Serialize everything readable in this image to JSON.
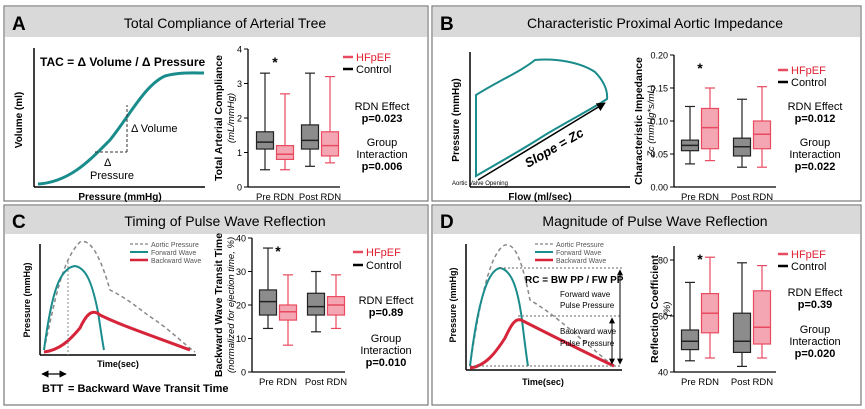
{
  "colors": {
    "header_bg": "#d9d9d9",
    "teal": "#1a8c8c",
    "red": "#d6243a",
    "pink_fill": "#f4a7b3",
    "pink_stroke": "#e84a5f",
    "gray_fill": "#8c8c8c",
    "dash": "#999999"
  },
  "legend": {
    "hfpef": "HFpEF",
    "control": "Control"
  },
  "panels": [
    {
      "letter": "A",
      "title": "Total Compliance of Arterial Tree",
      "schematic": {
        "equation": "TAC = Δ Volume / Δ Pressure",
        "ylabel": "Volume (ml)",
        "xlabel": "Pressure (mmHg)",
        "delta_volume": "Δ Volume",
        "delta_pressure_symbol": "Δ",
        "delta_pressure_word": "Pressure"
      },
      "stats": [
        {
          "label": "RDN Effect",
          "value": "p=0.023"
        },
        {
          "label": "Group",
          "label2": "Interaction",
          "value": "p=0.006"
        }
      ]
    },
    {
      "letter": "B",
      "title": "Characteristic Proximal Aortic Impedance",
      "schematic": {
        "ylabel": "Pressure (mmHg)",
        "xlabel": "Flow (ml/sec)",
        "slope": "Slope = Zc",
        "opening": "Aortic Valve Opening"
      },
      "stats": [
        {
          "label": "RDN Effect",
          "value": "p=0.012"
        },
        {
          "label": "Group",
          "label2": "Interaction",
          "value": "p=0.022"
        }
      ]
    },
    {
      "letter": "C",
      "title": "Timing of Pulse Wave Reflection",
      "schematic": {
        "ylabel": "Pressure (mmHg)",
        "xlabel": "Time(sec)",
        "legend": [
          "Aortic Pressure",
          "Forward Wave",
          "Backward Wave"
        ],
        "btt_abbrev": "BTT",
        "btt_def": "= Backward Wave Transit Time"
      },
      "stats": [
        {
          "label": "RDN Effect",
          "value": "p=0.89"
        },
        {
          "label": "Group",
          "label2": "Interaction",
          "value": "p=0.010"
        }
      ]
    },
    {
      "letter": "D",
      "title": "Magnitude of Pulse Wave Reflection",
      "schematic": {
        "ylabel": "Pressure (mmHg)",
        "xlabel": "Time(sec)",
        "legend": [
          "Aortic Pressure",
          "Forward Wave",
          "Backward Wave"
        ],
        "rc_eq": "RC = BW PP / FW PP",
        "fw_line1": "Forward wave",
        "fw_line2": "Pulse Pressure",
        "bw_line1": "Backward wave",
        "bw_line2": "Pulse Pressure"
      },
      "stats": [
        {
          "label": "RDN Effect",
          "value": "p=0.39"
        },
        {
          "label": "Group",
          "label2": "Interaction",
          "value": "p=0.020"
        }
      ]
    }
  ],
  "chart_data": [
    {
      "type": "box",
      "panel": "A",
      "ylabel": "Total Arterial Compliance",
      "ylabel2": "(mL/mmHg)",
      "ylim": [
        0,
        4
      ],
      "yticks": [
        "0",
        "1",
        "2",
        "3",
        "4"
      ],
      "groups": [
        "Pre RDN",
        "Post RDN"
      ],
      "significance": "*",
      "series": [
        {
          "name": "Control",
          "boxes": [
            {
              "min": 0.5,
              "q1": 1.1,
              "median": 1.3,
              "q3": 1.6,
              "max": 3.3
            },
            {
              "min": 0.6,
              "q1": 1.1,
              "median": 1.35,
              "q3": 1.8,
              "max": 3.3
            }
          ]
        },
        {
          "name": "HFpEF",
          "boxes": [
            {
              "min": 0.5,
              "q1": 0.8,
              "median": 0.95,
              "q3": 1.2,
              "max": 2.7
            },
            {
              "min": 0.7,
              "q1": 0.9,
              "median": 1.2,
              "q3": 1.6,
              "max": 3.2
            }
          ]
        }
      ]
    },
    {
      "type": "box",
      "panel": "B",
      "ylabel": "Characteristic Impedance",
      "ylabel2": "Zc (mmHg*s/mL)",
      "ylim": [
        0,
        0.2
      ],
      "yticks": [
        "0.00",
        "0.05",
        "0.10",
        "0.15",
        "0.20"
      ],
      "groups": [
        "Pre RDN",
        "Post RDN"
      ],
      "significance": "*",
      "series": [
        {
          "name": "Control",
          "boxes": [
            {
              "min": 0.035,
              "q1": 0.055,
              "median": 0.063,
              "q3": 0.071,
              "max": 0.122
            },
            {
              "min": 0.03,
              "q1": 0.047,
              "median": 0.061,
              "q3": 0.074,
              "max": 0.133
            }
          ]
        },
        {
          "name": "HFpEF",
          "boxes": [
            {
              "min": 0.04,
              "q1": 0.058,
              "median": 0.09,
              "q3": 0.119,
              "max": 0.15
            },
            {
              "min": 0.03,
              "q1": 0.058,
              "median": 0.08,
              "q3": 0.1,
              "max": 0.152
            }
          ]
        }
      ]
    },
    {
      "type": "box",
      "panel": "C",
      "ylabel": "Backward Wave Transit Time",
      "ylabel2": "(normalized for ejection time, %)",
      "ylim": [
        0,
        40
      ],
      "yticks": [
        "0",
        "10",
        "20",
        "30",
        "40"
      ],
      "groups": [
        "Pre RDN",
        "Post RDN"
      ],
      "significance": "*",
      "series": [
        {
          "name": "Control",
          "boxes": [
            {
              "min": 13,
              "q1": 17,
              "median": 21,
              "q3": 24.5,
              "max": 37
            },
            {
              "min": 12,
              "q1": 17,
              "median": 19.5,
              "q3": 23.5,
              "max": 30
            }
          ]
        },
        {
          "name": "HFpEF",
          "boxes": [
            {
              "min": 8,
              "q1": 15.5,
              "median": 18,
              "q3": 20,
              "max": 29
            },
            {
              "min": 13,
              "q1": 17,
              "median": 20,
              "q3": 22.5,
              "max": 29
            }
          ]
        }
      ]
    },
    {
      "type": "box",
      "panel": "D",
      "ylabel": "Reflection Coefficient",
      "ylabel2": "(%)",
      "ylim": [
        40,
        85
      ],
      "yticks": [
        "40",
        "60",
        "80"
      ],
      "groups": [
        "Pre RDN",
        "Post RDN"
      ],
      "significance": "*",
      "series": [
        {
          "name": "Control",
          "boxes": [
            {
              "min": 44,
              "q1": 48,
              "median": 51,
              "q3": 55,
              "max": 72
            },
            {
              "min": 42,
              "q1": 47,
              "median": 51,
              "q3": 61,
              "max": 79
            }
          ]
        },
        {
          "name": "HFpEF",
          "boxes": [
            {
              "min": 45,
              "q1": 54,
              "median": 61,
              "q3": 68,
              "max": 81
            },
            {
              "min": 45,
              "q1": 50,
              "median": 56,
              "q3": 69,
              "max": 78
            }
          ]
        }
      ]
    }
  ]
}
